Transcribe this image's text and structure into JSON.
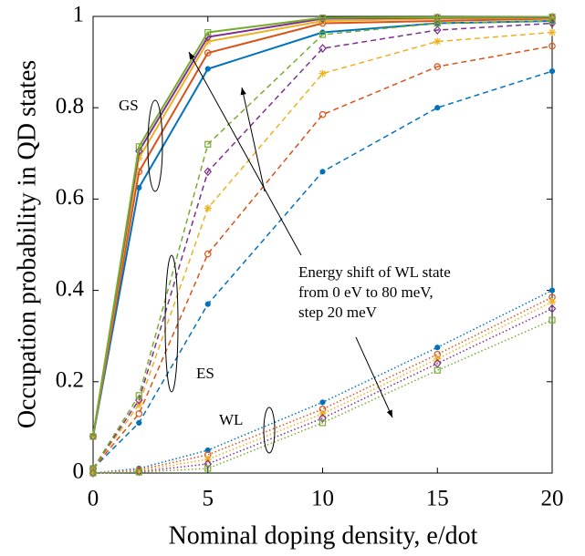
{
  "chart_data": {
    "type": "line",
    "xlabel": "Nominal doping density, e/dot",
    "ylabel": "Occupation probability in QD states",
    "x": [
      0,
      2,
      5,
      10,
      15,
      20
    ],
    "xlim": [
      0,
      20
    ],
    "xticks": [
      0,
      5,
      10,
      15,
      20
    ],
    "ylim": [
      0,
      1
    ],
    "yticks": [
      0,
      0.2,
      0.4,
      0.6,
      0.8,
      1
    ],
    "grid": false,
    "series": [
      {
        "color": "#0072bd",
        "style": "solid",
        "marker": "dot",
        "values": [
          0.08,
          0.625,
          0.885,
          0.965,
          0.985,
          0.99
        ]
      },
      {
        "color": "#d95319",
        "style": "solid",
        "marker": "circle",
        "values": [
          0.08,
          0.66,
          0.92,
          0.985,
          0.99,
          0.995
        ]
      },
      {
        "color": "#edb120",
        "style": "solid",
        "marker": "star",
        "values": [
          0.08,
          0.69,
          0.945,
          0.99,
          0.995,
          0.997
        ]
      },
      {
        "color": "#7e2f8e",
        "style": "solid",
        "marker": "diamond",
        "values": [
          0.08,
          0.705,
          0.955,
          0.995,
          0.997,
          0.998
        ]
      },
      {
        "color": "#77ac30",
        "style": "solid",
        "marker": "square",
        "values": [
          0.08,
          0.715,
          0.965,
          0.997,
          0.998,
          0.999
        ]
      },
      {
        "color": "#0072bd",
        "style": "dashed",
        "marker": "dot",
        "values": [
          0.01,
          0.11,
          0.37,
          0.66,
          0.8,
          0.88
        ]
      },
      {
        "color": "#d95319",
        "style": "dashed",
        "marker": "circle",
        "values": [
          0.01,
          0.13,
          0.48,
          0.785,
          0.89,
          0.935
        ]
      },
      {
        "color": "#edb120",
        "style": "dashed",
        "marker": "star",
        "values": [
          0.01,
          0.15,
          0.58,
          0.875,
          0.945,
          0.965
        ]
      },
      {
        "color": "#7e2f8e",
        "style": "dashed",
        "marker": "diamond",
        "values": [
          0.01,
          0.16,
          0.66,
          0.93,
          0.97,
          0.985
        ]
      },
      {
        "color": "#77ac30",
        "style": "dashed",
        "marker": "square",
        "values": [
          0.01,
          0.17,
          0.72,
          0.96,
          0.985,
          0.99
        ]
      },
      {
        "color": "#0072bd",
        "style": "dotted",
        "marker": "dot",
        "values": [
          0,
          0.01,
          0.05,
          0.155,
          0.275,
          0.4
        ]
      },
      {
        "color": "#d95319",
        "style": "dotted",
        "marker": "circle",
        "values": [
          0,
          0.007,
          0.04,
          0.14,
          0.26,
          0.385
        ]
      },
      {
        "color": "#edb120",
        "style": "dotted",
        "marker": "star",
        "values": [
          0,
          0.005,
          0.03,
          0.13,
          0.25,
          0.375
        ]
      },
      {
        "color": "#7e2f8e",
        "style": "dotted",
        "marker": "diamond",
        "values": [
          0,
          0.003,
          0.02,
          0.12,
          0.24,
          0.36
        ]
      },
      {
        "color": "#77ac30",
        "style": "dotted",
        "marker": "square",
        "values": [
          0,
          0.002,
          0.01,
          0.11,
          0.225,
          0.335
        ]
      }
    ],
    "annotations": [
      "GS",
      "ES",
      "WL",
      "Energy shift of WL state",
      "from 0 eV to 80 meV,",
      "step 20 meV"
    ]
  }
}
